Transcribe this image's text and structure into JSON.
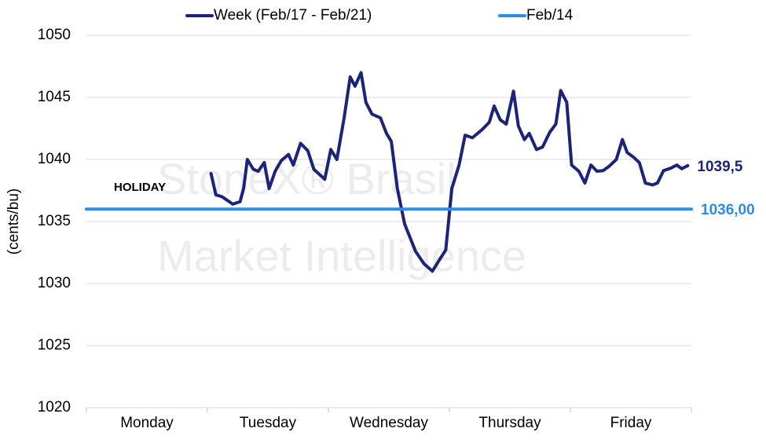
{
  "chart_data": {
    "type": "line",
    "y_label": "(cents/bu)",
    "annotation": "HOLIDAY",
    "watermark": [
      "StoneX® Brasil",
      "Market Intelligence"
    ],
    "categories": [
      "Monday",
      "Tuesday",
      "Wednesday",
      "Thursday",
      "Friday"
    ],
    "xlim": [
      0,
      5
    ],
    "ylim": [
      1020,
      1050
    ],
    "yticks": [
      1020,
      1025,
      1030,
      1035,
      1040,
      1045,
      1050
    ],
    "grid": true,
    "legend": "top",
    "series": [
      {
        "name": "Week (Feb/17 - Feb/21)",
        "color": "#1b2479",
        "x": [
          1.03,
          1.07,
          1.12,
          1.21,
          1.27,
          1.3,
          1.33,
          1.38,
          1.42,
          1.47,
          1.51,
          1.56,
          1.61,
          1.67,
          1.71,
          1.77,
          1.83,
          1.88,
          1.97,
          2.02,
          2.07,
          2.13,
          2.18,
          2.22,
          2.27,
          2.31,
          2.36,
          2.43,
          2.48,
          2.52,
          2.57,
          2.63,
          2.72,
          2.79,
          2.86,
          2.92,
          2.97,
          3.02,
          3.08,
          3.13,
          3.19,
          3.27,
          3.33,
          3.37,
          3.42,
          3.47,
          3.53,
          3.57,
          3.62,
          3.66,
          3.72,
          3.77,
          3.83,
          3.88,
          3.92,
          3.97,
          4.01,
          4.07,
          4.12,
          4.17,
          4.22,
          4.27,
          4.32,
          4.38,
          4.43,
          4.47,
          4.52,
          4.57,
          4.62,
          4.68,
          4.72,
          4.77,
          4.83,
          4.88,
          4.92,
          4.97
        ],
        "values": [
          1038.86,
          1037.15,
          1037.0,
          1036.4,
          1036.6,
          1037.7,
          1040.0,
          1039.2,
          1039.05,
          1039.75,
          1037.65,
          1039.05,
          1039.9,
          1040.4,
          1039.55,
          1041.3,
          1040.7,
          1039.2,
          1038.4,
          1040.8,
          1040.0,
          1043.35,
          1046.65,
          1045.9,
          1047.0,
          1044.6,
          1043.65,
          1043.35,
          1042.1,
          1041.45,
          1037.65,
          1034.8,
          1032.6,
          1031.6,
          1031.0,
          1031.95,
          1032.7,
          1037.65,
          1039.55,
          1041.95,
          1041.75,
          1042.4,
          1043.0,
          1044.3,
          1043.2,
          1042.85,
          1045.5,
          1042.7,
          1041.6,
          1042.1,
          1040.8,
          1041.0,
          1042.2,
          1042.85,
          1045.55,
          1044.6,
          1039.55,
          1039.05,
          1038.1,
          1039.55,
          1039.05,
          1039.1,
          1039.45,
          1040.0,
          1041.6,
          1040.55,
          1040.2,
          1039.75,
          1038.1,
          1037.95,
          1038.1,
          1039.1,
          1039.3,
          1039.55,
          1039.25,
          1039.5
        ],
        "value_labels": [
          null,
          null,
          null,
          null,
          null,
          null,
          null,
          null,
          null,
          null,
          null,
          null,
          null,
          null,
          null,
          null,
          null,
          null,
          null,
          null,
          null,
          null,
          null,
          null,
          null,
          null,
          null,
          null,
          null,
          null,
          null,
          null,
          null,
          null,
          null,
          null,
          null,
          null,
          null,
          null,
          null,
          null,
          null,
          null,
          null,
          null,
          null,
          null,
          null,
          null,
          null,
          null,
          null,
          null,
          null,
          null,
          null,
          null,
          null,
          null,
          null,
          null,
          null,
          null,
          null,
          null,
          null,
          null,
          null,
          null,
          null,
          null,
          null,
          null,
          null,
          "1039,5"
        ]
      },
      {
        "name": "Feb/14",
        "color": "#2a8ee6",
        "x": [
          0,
          5
        ],
        "values": [
          1036,
          1036
        ],
        "value_labels": [
          null,
          "1036,00"
        ]
      }
    ]
  }
}
